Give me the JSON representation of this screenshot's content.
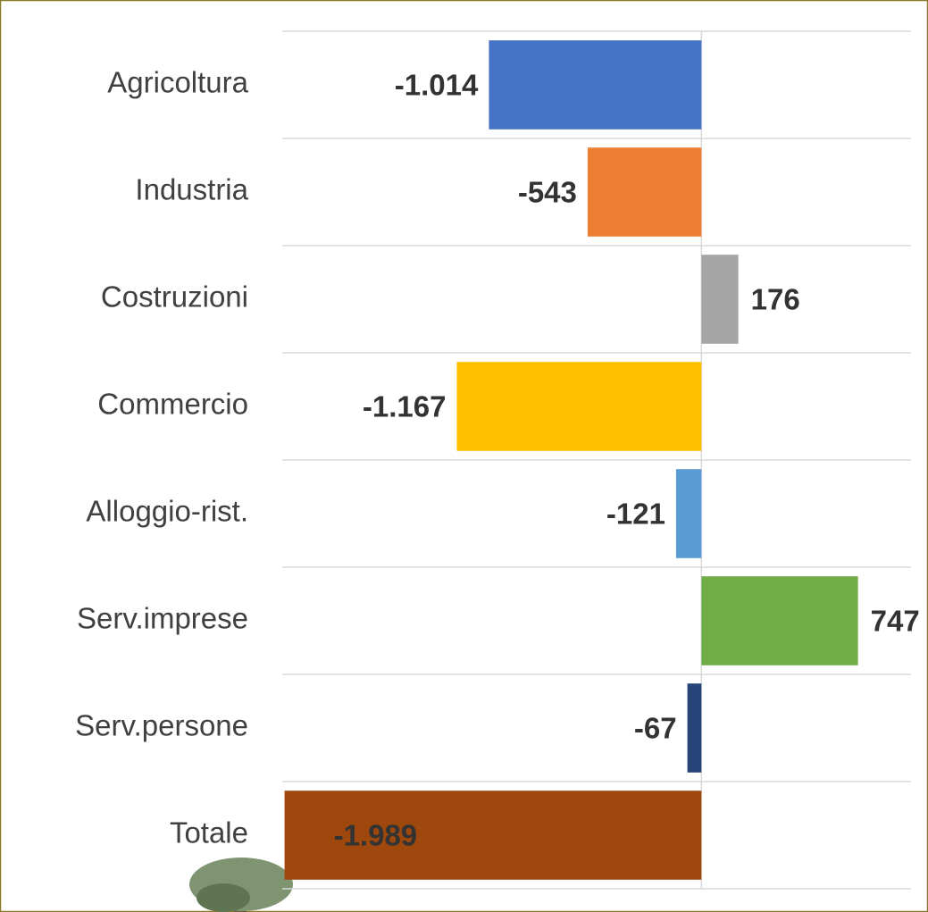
{
  "chart_data": {
    "type": "bar",
    "orientation": "horizontal",
    "categories": [
      "Agricoltura",
      "Industria",
      "Costruzioni",
      "Commercio",
      "Alloggio-rist.",
      "Serv.imprese",
      "Serv.persone",
      "Totale"
    ],
    "values": [
      -1014,
      -543,
      176,
      -1167,
      -121,
      747,
      -67,
      -1989
    ],
    "value_labels": [
      "-1.014",
      "-543",
      "176",
      "-1.167",
      "-121",
      "747",
      "-67",
      "-1.989"
    ],
    "colors": [
      "#4472c4",
      "#ed7d31",
      "#a5a5a5",
      "#ffc000",
      "#5b9bd5",
      "#70ad47",
      "#264478",
      "#9e480e"
    ],
    "xlim": [
      -2000,
      1000
    ],
    "grid": true
  }
}
